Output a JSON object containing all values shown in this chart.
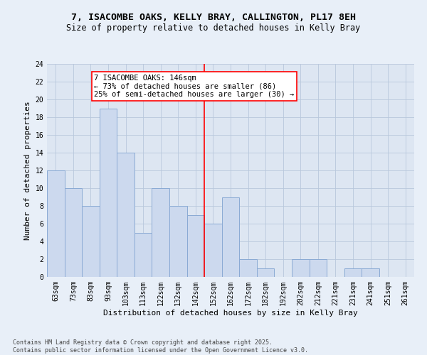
{
  "title_line1": "7, ISACOMBE OAKS, KELLY BRAY, CALLINGTON, PL17 8EH",
  "title_line2": "Size of property relative to detached houses in Kelly Bray",
  "xlabel": "Distribution of detached houses by size in Kelly Bray",
  "ylabel": "Number of detached properties",
  "categories": [
    "63sqm",
    "73sqm",
    "83sqm",
    "93sqm",
    "103sqm",
    "113sqm",
    "122sqm",
    "132sqm",
    "142sqm",
    "152sqm",
    "162sqm",
    "172sqm",
    "182sqm",
    "192sqm",
    "202sqm",
    "212sqm",
    "221sqm",
    "231sqm",
    "241sqm",
    "251sqm",
    "261sqm"
  ],
  "values": [
    12,
    10,
    8,
    19,
    14,
    5,
    10,
    8,
    7,
    6,
    9,
    2,
    1,
    0,
    2,
    2,
    0,
    1,
    1,
    0,
    0
  ],
  "bar_color": "#ccd9ee",
  "bar_edge_color": "#8aaad4",
  "annotation_text": "7 ISACOMBE OAKS: 146sqm\n← 73% of detached houses are smaller (86)\n25% of semi-detached houses are larger (30) →",
  "annotation_box_color": "white",
  "annotation_box_edge_color": "red",
  "ylim": [
    0,
    24
  ],
  "yticks": [
    0,
    2,
    4,
    6,
    8,
    10,
    12,
    14,
    16,
    18,
    20,
    22,
    24
  ],
  "grid_color": "#b8c8dc",
  "background_color": "#dde6f2",
  "fig_background_color": "#e8eff8",
  "footer_line1": "Contains HM Land Registry data © Crown copyright and database right 2025.",
  "footer_line2": "Contains public sector information licensed under the Open Government Licence v3.0.",
  "title1_fontsize": 9.5,
  "title2_fontsize": 8.5,
  "axis_label_fontsize": 8,
  "tick_fontsize": 7,
  "annotation_fontsize": 7.5,
  "footer_fontsize": 6
}
